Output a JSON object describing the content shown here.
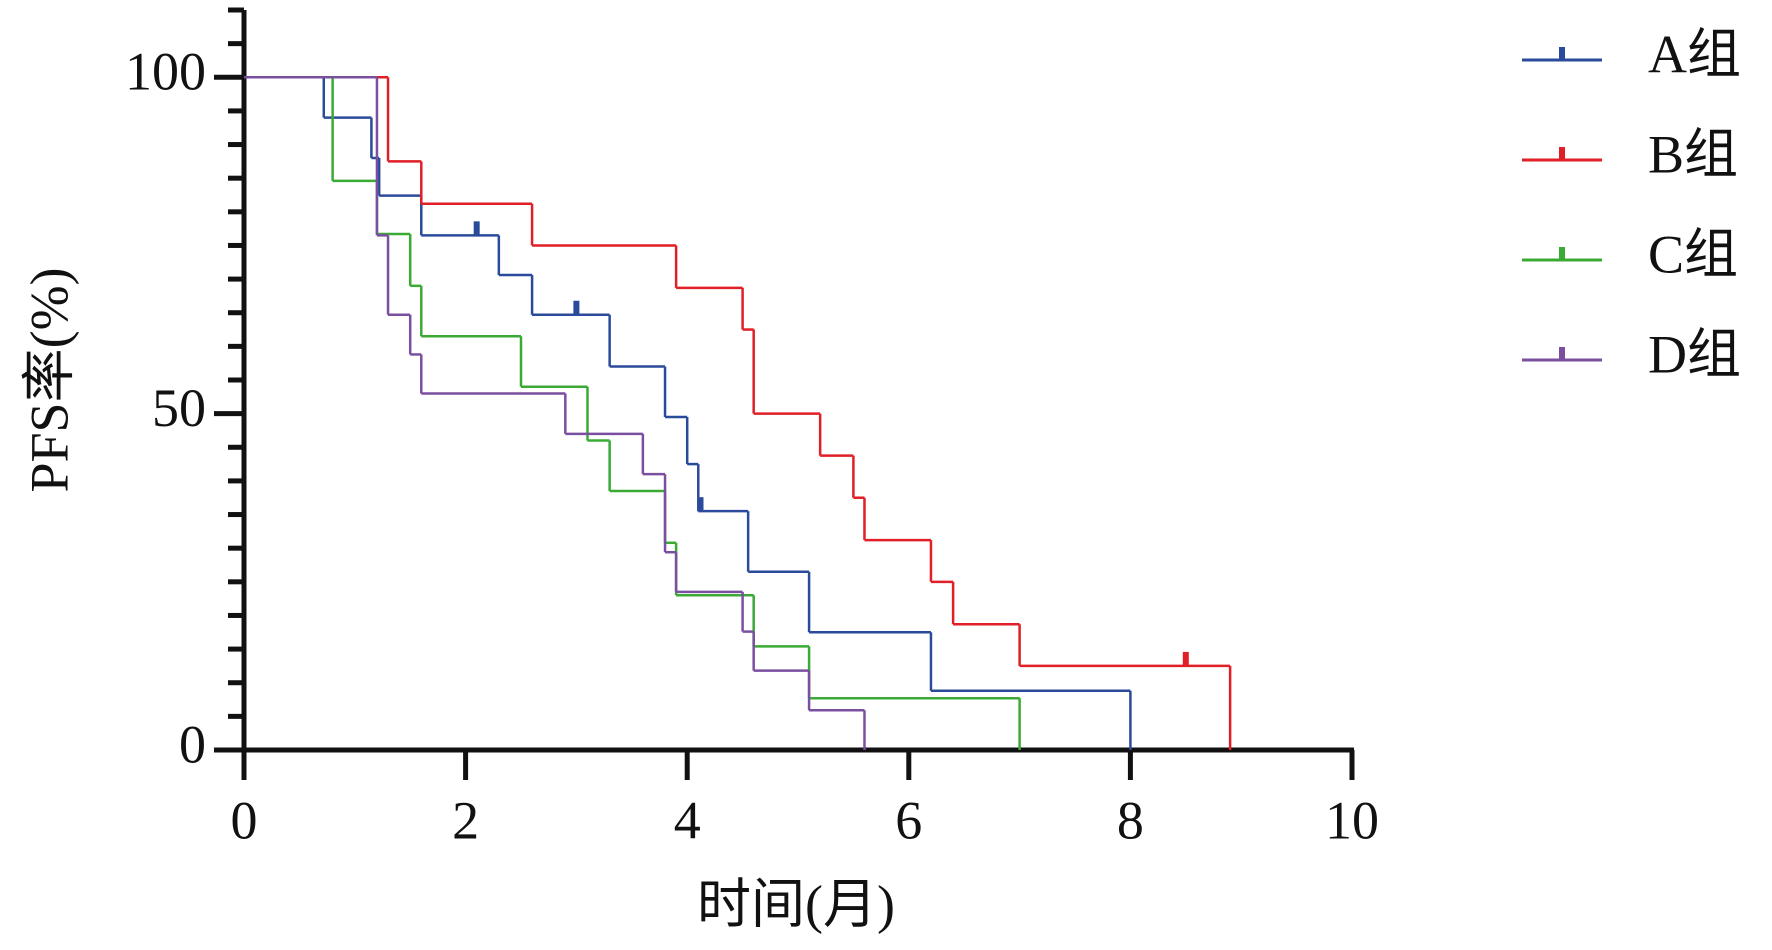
{
  "chart_data": {
    "type": "step",
    "xlabel": "时间(月)",
    "ylabel": "PFS率(%)",
    "xlim": [
      0,
      10
    ],
    "xticks": [
      0,
      2,
      4,
      6,
      8,
      10
    ],
    "ylim": [
      0,
      110
    ],
    "yticks": [
      0,
      50,
      100
    ],
    "yminorticks": [
      5,
      10,
      15,
      20,
      25,
      30,
      35,
      40,
      45,
      55,
      60,
      65,
      70,
      75,
      80,
      85,
      90,
      95,
      105,
      110
    ],
    "legend": "right",
    "series": [
      {
        "name": "A组",
        "color": "#2a4b9b",
        "x": [
          0,
          0.72,
          1.15,
          1.22,
          1.6,
          2.3,
          2.6,
          3.3,
          3.8,
          4.0,
          4.1,
          4.55,
          5.1,
          6.2,
          8.0
        ],
        "values": [
          100,
          94,
          88,
          82.4,
          76.5,
          70.6,
          64.7,
          57,
          49.5,
          42.5,
          35.5,
          26.5,
          17.5,
          8.8,
          0
        ],
        "censor_x": [
          2.1,
          3.0,
          4.12
        ],
        "censor_values": [
          76.5,
          64.7,
          35.5
        ]
      },
      {
        "name": "B组",
        "color": "#e01f26",
        "x": [
          0,
          1.3,
          1.6,
          2.6,
          3.9,
          4.5,
          4.6,
          5.2,
          5.5,
          5.6,
          6.2,
          6.4,
          7.0,
          8.9
        ],
        "values": [
          100,
          87.5,
          81.2,
          75,
          68.7,
          62.5,
          50,
          43.75,
          37.5,
          31.2,
          25,
          18.7,
          12.5,
          0
        ],
        "censor_x": [
          8.5
        ],
        "censor_values": [
          12.5
        ]
      },
      {
        "name": "C组",
        "color": "#3aaa35",
        "x": [
          0,
          0.8,
          1.2,
          1.5,
          1.6,
          2.5,
          3.1,
          3.3,
          3.8,
          3.9,
          4.6,
          5.1,
          7.0
        ],
        "values": [
          100,
          84.6,
          76.7,
          69,
          61.5,
          54,
          46,
          38.5,
          30.8,
          23,
          15.4,
          7.7,
          0
        ],
        "censor_x": [],
        "censor_values": []
      },
      {
        "name": "D组",
        "color": "#7b4fa0",
        "x": [
          0,
          1.2,
          1.3,
          1.5,
          1.6,
          2.9,
          3.6,
          3.8,
          3.9,
          4.5,
          4.6,
          5.1,
          5.6
        ],
        "values": [
          100,
          76.5,
          64.7,
          58.8,
          53,
          47,
          41,
          29.4,
          23.5,
          17.6,
          11.8,
          5.9,
          0
        ],
        "censor_x": [],
        "censor_values": []
      }
    ]
  }
}
